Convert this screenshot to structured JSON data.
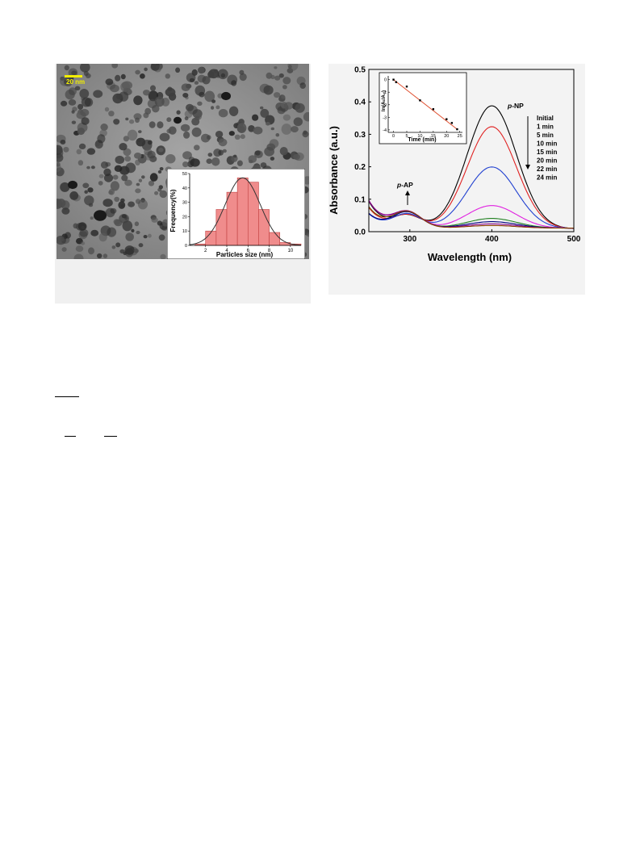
{
  "tem": {
    "scale_bar_label": "20 nm",
    "colors": {
      "scale_bar": "#f2ee00",
      "particles": "#2a2a2a",
      "background": "#8e8e8e"
    }
  },
  "chart_data": [
    {
      "type": "bar",
      "name": "particle size histogram (inset)",
      "xlabel": "Particles size (nm)",
      "ylabel": "Frequency(%)",
      "xlim": [
        0.5,
        11
      ],
      "ylim": [
        0,
        50
      ],
      "xticks": [
        2,
        4,
        6,
        8,
        10
      ],
      "yticks": [
        0,
        10,
        20,
        30,
        40,
        50
      ],
      "bins": [
        {
          "x0": 1,
          "x1": 2,
          "value": 1
        },
        {
          "x0": 2,
          "x1": 3,
          "value": 10
        },
        {
          "x0": 3,
          "x1": 4,
          "value": 25
        },
        {
          "x0": 4,
          "x1": 5,
          "value": 37
        },
        {
          "x0": 5,
          "x1": 6,
          "value": 47
        },
        {
          "x0": 6,
          "x1": 7,
          "value": 44
        },
        {
          "x0": 7,
          "x1": 8,
          "value": 25
        },
        {
          "x0": 8,
          "x1": 9,
          "value": 9
        },
        {
          "x0": 9,
          "x1": 10,
          "value": 2
        },
        {
          "x0": 10,
          "x1": 11,
          "value": 1
        }
      ],
      "fit": {
        "type": "gaussian",
        "mean": 5.5,
        "sd": 1.65,
        "peak": 47
      },
      "colors": {
        "bar": "#f08c8c",
        "bar_edge": "#c04040",
        "fit": "#333333"
      }
    },
    {
      "type": "line",
      "name": "UV-vis absorbance spectra",
      "xlabel": "Wavelength (nm)",
      "ylabel": "Absorbance (a.u.)",
      "xlim": [
        250,
        500
      ],
      "ylim": [
        0,
        0.5
      ],
      "xticks": [
        300,
        400,
        500
      ],
      "yticks": [
        0.0,
        0.1,
        0.2,
        0.3,
        0.4,
        0.5
      ],
      "grid": false,
      "series": [
        {
          "name": "Initial",
          "color": "#000000",
          "peak": 0.38
        },
        {
          "name": "1 min",
          "color": "#e02020",
          "peak": 0.315
        },
        {
          "name": "5 min",
          "color": "#2040d0",
          "peak": 0.19
        },
        {
          "name": "10 min",
          "color": "#e020e0",
          "peak": 0.07
        },
        {
          "name": "15 min",
          "color": "#208020",
          "peak": 0.03
        },
        {
          "name": "20 min",
          "color": "#000080",
          "peak": 0.02
        },
        {
          "name": "22 min",
          "color": "#800080",
          "peak": 0.013
        },
        {
          "name": "24 min",
          "color": "#8b4000",
          "peak": 0.008
        }
      ],
      "annotations": {
        "pnp_prefix": "p",
        "pnp_rest": "-NP",
        "pap_prefix": "p",
        "pap_rest": "-AP"
      },
      "legend_position": "right"
    },
    {
      "type": "scatter",
      "name": "kinetics inset",
      "xlabel": "Time (min)",
      "ylabel": "ln(Aₜ/A₀)",
      "xlim": [
        -2,
        26
      ],
      "ylim": [
        -4.2,
        0.3
      ],
      "xticks": [
        0,
        5,
        10,
        15,
        20,
        25
      ],
      "yticks": [
        0,
        -1,
        -2,
        -3,
        -4
      ],
      "x": [
        0,
        1,
        5,
        10,
        15,
        20,
        22,
        24
      ],
      "y": [
        0,
        -0.2,
        -0.55,
        -1.65,
        -2.35,
        -3.15,
        -3.45,
        -3.95
      ],
      "fit_line": {
        "x": [
          0,
          24
        ],
        "y": [
          0,
          -3.95
        ]
      },
      "colors": {
        "points": "#000000",
        "line": "#e05030"
      }
    }
  ]
}
